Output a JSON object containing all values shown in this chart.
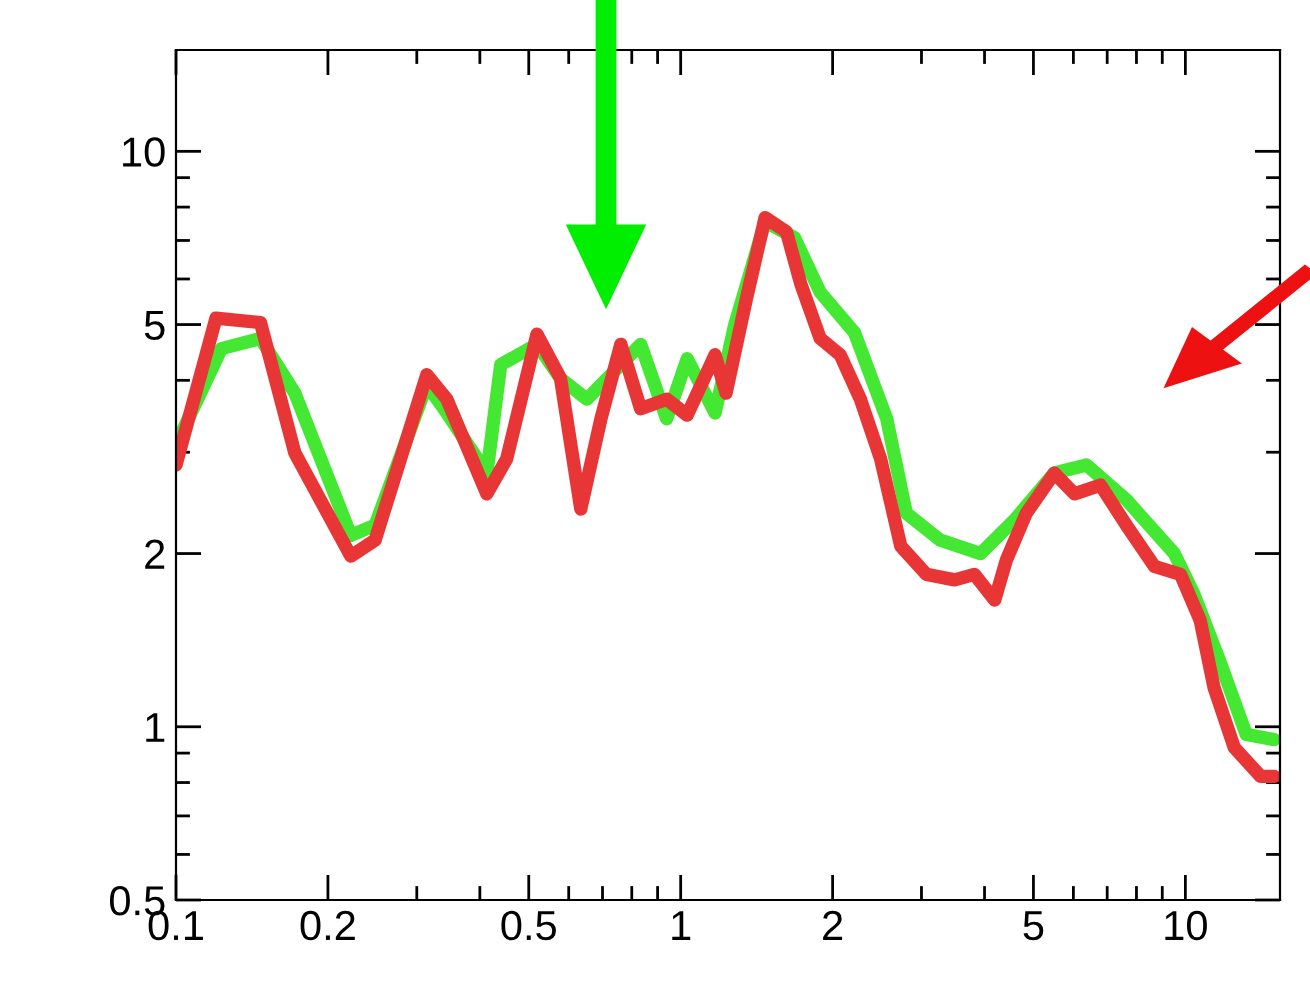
{
  "chart_data": {
    "type": "line",
    "log": "xy",
    "grid": false,
    "legend": false,
    "marker": "none",
    "line_style": "solid",
    "xlim": [
      0.1,
      15.4
    ],
    "ylim": [
      0.5,
      15
    ],
    "xticks": [
      0.1,
      0.2,
      0.5,
      1,
      2,
      5,
      10
    ],
    "yticks": [
      0.5,
      1,
      2,
      5,
      10
    ],
    "series": [
      {
        "color": "#44e833",
        "x": [
          0.1,
          0.123,
          0.147,
          0.172,
          0.222,
          0.248,
          0.314,
          0.344,
          0.413,
          0.44,
          0.519,
          0.578,
          0.652,
          0.761,
          0.833,
          0.938,
          1.03,
          1.17,
          1.28,
          1.47,
          1.68,
          1.89,
          2.21,
          2.56,
          2.8,
          3.27,
          3.93,
          4.59,
          5.5,
          6.37,
          7.64,
          9.51,
          10.4,
          11.7,
          13.2,
          15
        ],
        "values": [
          3.09,
          4.54,
          4.73,
          3.8,
          2.15,
          2.24,
          3.93,
          3.51,
          2.76,
          4.26,
          4.62,
          4.03,
          3.71,
          4.26,
          4.62,
          3.43,
          4.36,
          3.51,
          5.0,
          7.55,
          7.08,
          5.69,
          4.84,
          3.43,
          2.35,
          2.11,
          2.0,
          2.29,
          2.76,
          2.85,
          2.48,
          2.0,
          1.7,
          1.3,
          0.97,
          0.95
        ]
      },
      {
        "color": "#e83535",
        "x": [
          0.1,
          0.12,
          0.147,
          0.172,
          0.222,
          0.248,
          0.314,
          0.344,
          0.413,
          0.452,
          0.519,
          0.578,
          0.634,
          0.695,
          0.761,
          0.833,
          0.938,
          1.03,
          1.17,
          1.23,
          1.35,
          1.47,
          1.62,
          1.73,
          1.89,
          2.07,
          2.27,
          2.49,
          2.73,
          3.07,
          3.49,
          3.82,
          4.19,
          4.42,
          4.84,
          5.5,
          6.03,
          6.79,
          7.64,
          8.68,
          9.78,
          10.7,
          11.4,
          12.5,
          14.1,
          15
        ],
        "values": [
          2.85,
          5.13,
          5.04,
          2.99,
          1.98,
          2.11,
          4.09,
          3.71,
          2.54,
          2.92,
          4.81,
          4.03,
          2.39,
          3.43,
          4.62,
          3.57,
          3.71,
          3.48,
          4.43,
          3.8,
          5.55,
          7.67,
          7.25,
          5.88,
          4.73,
          4.43,
          3.71,
          2.92,
          2.06,
          1.84,
          1.8,
          1.84,
          1.66,
          1.95,
          2.35,
          2.76,
          2.54,
          2.63,
          2.24,
          1.9,
          1.84,
          1.53,
          1.17,
          0.92,
          0.82,
          0.82
        ]
      }
    ]
  }
}
